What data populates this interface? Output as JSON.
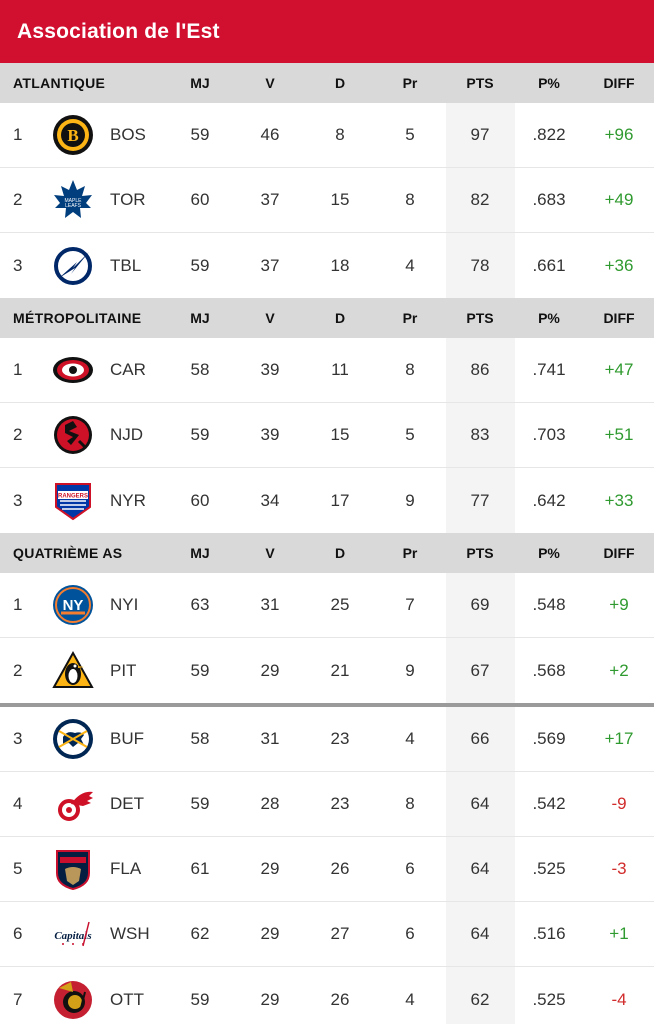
{
  "title": "Association de l'Est",
  "columns": {
    "mj": "MJ",
    "v": "V",
    "d": "D",
    "pr": "Pr",
    "pts": "PTS",
    "pct": "P%",
    "diff": "DIFF"
  },
  "sections": [
    {
      "name": "ATLANTIQUE",
      "teams": [
        {
          "rank": "1",
          "logo": "bruins-logo",
          "abbr": "BOS",
          "mj": "59",
          "v": "46",
          "d": "8",
          "pr": "5",
          "pts": "97",
          "pct": ".822",
          "diff": "+96"
        },
        {
          "rank": "2",
          "logo": "maple-leafs-logo",
          "abbr": "TOR",
          "mj": "60",
          "v": "37",
          "d": "15",
          "pr": "8",
          "pts": "82",
          "pct": ".683",
          "diff": "+49"
        },
        {
          "rank": "3",
          "logo": "lightning-logo",
          "abbr": "TBL",
          "mj": "59",
          "v": "37",
          "d": "18",
          "pr": "4",
          "pts": "78",
          "pct": ".661",
          "diff": "+36"
        }
      ]
    },
    {
      "name": "MÉTROPOLITAINE",
      "teams": [
        {
          "rank": "1",
          "logo": "hurricanes-logo",
          "abbr": "CAR",
          "mj": "58",
          "v": "39",
          "d": "11",
          "pr": "8",
          "pts": "86",
          "pct": ".741",
          "diff": "+47"
        },
        {
          "rank": "2",
          "logo": "devils-logo",
          "abbr": "NJD",
          "mj": "59",
          "v": "39",
          "d": "15",
          "pr": "5",
          "pts": "83",
          "pct": ".703",
          "diff": "+51"
        },
        {
          "rank": "3",
          "logo": "rangers-logo",
          "abbr": "NYR",
          "mj": "60",
          "v": "34",
          "d": "17",
          "pr": "9",
          "pts": "77",
          "pct": ".642",
          "diff": "+33"
        }
      ]
    },
    {
      "name": "QUATRIÈME AS",
      "teams": [
        {
          "rank": "1",
          "logo": "islanders-logo",
          "abbr": "NYI",
          "mj": "63",
          "v": "31",
          "d": "25",
          "pr": "7",
          "pts": "69",
          "pct": ".548",
          "diff": "+9"
        },
        {
          "rank": "2",
          "logo": "penguins-logo",
          "abbr": "PIT",
          "mj": "59",
          "v": "29",
          "d": "21",
          "pr": "9",
          "pts": "67",
          "pct": ".568",
          "diff": "+2"
        },
        {
          "rank": "3",
          "logo": "sabres-logo",
          "abbr": "BUF",
          "mj": "58",
          "v": "31",
          "d": "23",
          "pr": "4",
          "pts": "66",
          "pct": ".569",
          "diff": "+17"
        },
        {
          "rank": "4",
          "logo": "red-wings-logo",
          "abbr": "DET",
          "mj": "59",
          "v": "28",
          "d": "23",
          "pr": "8",
          "pts": "64",
          "pct": ".542",
          "diff": "-9"
        },
        {
          "rank": "5",
          "logo": "panthers-logo",
          "abbr": "FLA",
          "mj": "61",
          "v": "29",
          "d": "26",
          "pr": "6",
          "pts": "64",
          "pct": ".525",
          "diff": "-3"
        },
        {
          "rank": "6",
          "logo": "capitals-logo",
          "abbr": "WSH",
          "mj": "62",
          "v": "29",
          "d": "27",
          "pr": "6",
          "pts": "64",
          "pct": ".516",
          "diff": "+1"
        },
        {
          "rank": "7",
          "logo": "senators-logo",
          "abbr": "OTT",
          "mj": "59",
          "v": "29",
          "d": "26",
          "pr": "4",
          "pts": "62",
          "pct": ".525",
          "diff": "-4"
        }
      ]
    }
  ],
  "logo_text": {
    "capitals": "Capitals"
  },
  "colors": {
    "header": "#d10f2f",
    "positive": "#2f9a2f",
    "negative": "#d12b2b"
  }
}
